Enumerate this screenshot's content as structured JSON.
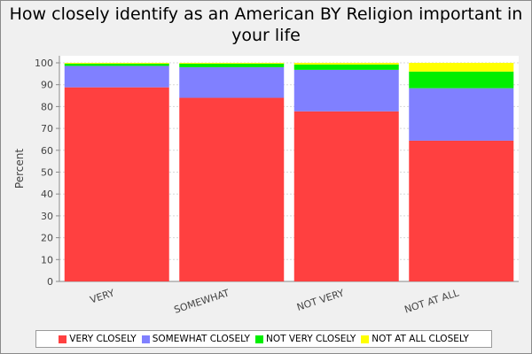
{
  "chart_data": {
    "type": "bar",
    "stacked": true,
    "title": "How closely identify as an American BY Religion important in your life",
    "xlabel": "",
    "ylabel": "Percent",
    "ylim": [
      0,
      100
    ],
    "yticks": [
      "0",
      "10",
      "20",
      "30",
      "40",
      "50",
      "60",
      "70",
      "80",
      "90",
      "100"
    ],
    "grid": true,
    "legend_position": "bottom",
    "categories": [
      "VERY",
      "SOMEWHAT",
      "NOT VERY",
      "NOT AT ALL"
    ],
    "series": [
      {
        "name": "VERY CLOSELY",
        "color": "#ff4040",
        "values": [
          88.8,
          84.0,
          77.8,
          64.4
        ]
      },
      {
        "name": "SOMEWHAT CLOSELY",
        "color": "#8080ff",
        "values": [
          9.8,
          14.0,
          19.0,
          24.0
        ]
      },
      {
        "name": "NOT VERY CLOSELY",
        "color": "#00ee00",
        "values": [
          1.0,
          1.6,
          2.4,
          7.6
        ]
      },
      {
        "name": "NOT AT ALL CLOSELY",
        "color": "#ffff00",
        "values": [
          0.4,
          0.4,
          0.8,
          4.0
        ]
      }
    ]
  }
}
